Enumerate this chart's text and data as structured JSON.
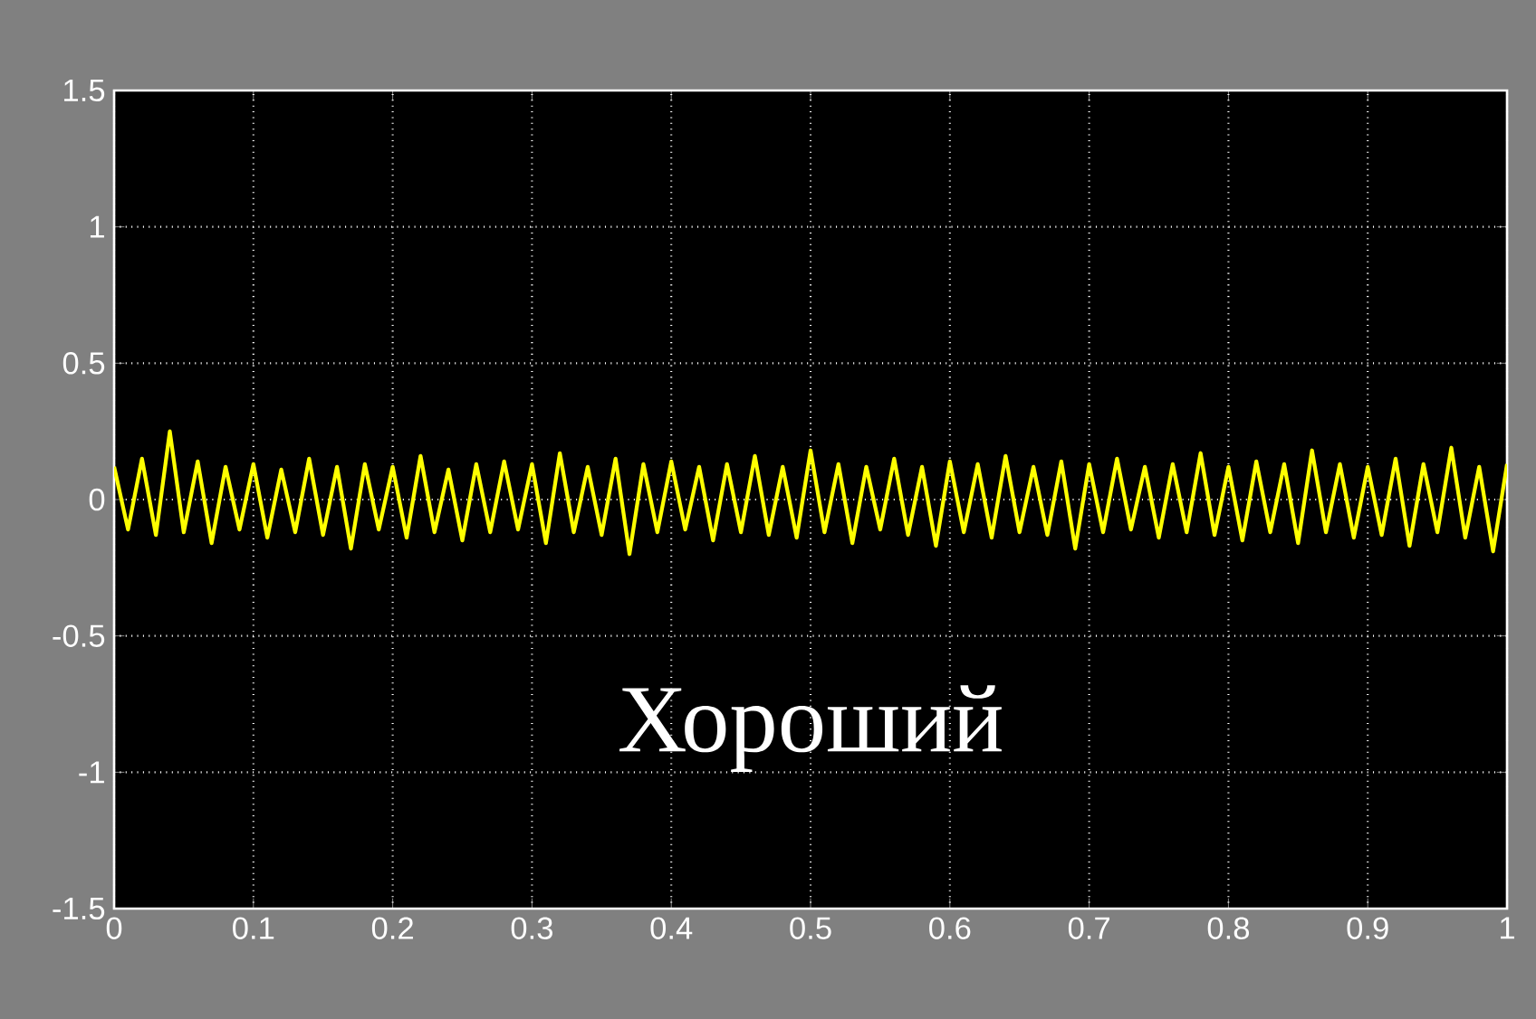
{
  "chart_data": {
    "type": "line",
    "x": [
      0,
      0.01,
      0.02,
      0.03,
      0.04,
      0.05,
      0.06,
      0.07,
      0.08,
      0.09,
      0.1,
      0.11,
      0.12,
      0.13,
      0.14,
      0.15,
      0.16,
      0.17,
      0.18,
      0.19,
      0.2,
      0.21,
      0.22,
      0.23,
      0.24,
      0.25,
      0.26,
      0.27,
      0.28,
      0.29,
      0.3,
      0.31,
      0.32,
      0.33,
      0.34,
      0.35,
      0.36,
      0.37,
      0.38,
      0.39,
      0.4,
      0.41,
      0.42,
      0.43,
      0.44,
      0.45,
      0.46,
      0.47,
      0.48,
      0.49,
      0.5,
      0.51,
      0.52,
      0.53,
      0.54,
      0.55,
      0.56,
      0.57,
      0.58,
      0.59,
      0.6,
      0.61,
      0.62,
      0.63,
      0.64,
      0.65,
      0.66,
      0.67,
      0.68,
      0.69,
      0.7,
      0.71,
      0.72,
      0.73,
      0.74,
      0.75,
      0.76,
      0.77,
      0.78,
      0.79,
      0.8,
      0.81,
      0.82,
      0.83,
      0.84,
      0.85,
      0.86,
      0.87,
      0.88,
      0.89,
      0.9,
      0.91,
      0.92,
      0.93,
      0.94,
      0.95,
      0.96,
      0.97,
      0.98,
      0.99,
      1
    ],
    "series": [
      {
        "color": "#ffff00",
        "values": [
          0.12,
          -0.11,
          0.15,
          -0.13,
          0.25,
          -0.12,
          0.14,
          -0.16,
          0.12,
          -0.11,
          0.13,
          -0.14,
          0.11,
          -0.12,
          0.15,
          -0.13,
          0.12,
          -0.18,
          0.13,
          -0.11,
          0.12,
          -0.14,
          0.16,
          -0.12,
          0.11,
          -0.15,
          0.13,
          -0.12,
          0.14,
          -0.11,
          0.13,
          -0.16,
          0.17,
          -0.12,
          0.12,
          -0.13,
          0.15,
          -0.2,
          0.13,
          -0.12,
          0.14,
          -0.11,
          0.12,
          -0.15,
          0.13,
          -0.12,
          0.16,
          -0.13,
          0.12,
          -0.14,
          0.18,
          -0.12,
          0.13,
          -0.16,
          0.12,
          -0.11,
          0.15,
          -0.13,
          0.12,
          -0.17,
          0.14,
          -0.12,
          0.13,
          -0.14,
          0.16,
          -0.12,
          0.12,
          -0.13,
          0.14,
          -0.18,
          0.13,
          -0.12,
          0.15,
          -0.11,
          0.12,
          -0.14,
          0.13,
          -0.12,
          0.17,
          -0.13,
          0.12,
          -0.15,
          0.14,
          -0.12,
          0.13,
          -0.16,
          0.18,
          -0.12,
          0.13,
          -0.14,
          0.12,
          -0.13,
          0.15,
          -0.17,
          0.13,
          -0.12,
          0.19,
          -0.14,
          0.12,
          -0.19,
          0.13
        ]
      }
    ],
    "xlim": [
      0,
      1
    ],
    "ylim": [
      -1.5,
      1.5
    ],
    "xticks": [
      0,
      0.1,
      0.2,
      0.3,
      0.4,
      0.5,
      0.6,
      0.7,
      0.8,
      0.9,
      1
    ],
    "yticks": [
      -1.5,
      -1,
      -0.5,
      0,
      0.5,
      1,
      1.5
    ],
    "grid": true,
    "annotations": [
      "Хороший"
    ]
  }
}
